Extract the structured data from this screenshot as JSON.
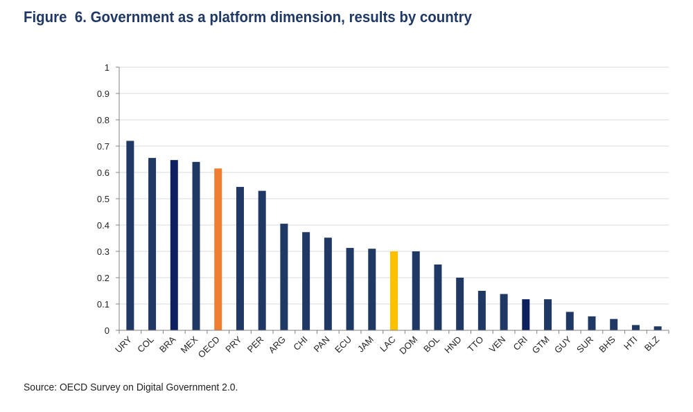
{
  "figure": {
    "title": "Figure  6. Government as a platform dimension, results by country",
    "source": "Source: OECD Survey on Digital Government 2.0."
  },
  "chart_data": {
    "type": "bar",
    "categories": [
      "URY",
      "COL",
      "BRA",
      "MEX",
      "OECD",
      "PRY",
      "PER",
      "ARG",
      "CHI",
      "PAN",
      "ECU",
      "JAM",
      "LAC",
      "DOM",
      "BOL",
      "HND",
      "TTO",
      "VEN",
      "CRI",
      "GTM",
      "GUY",
      "SUR",
      "BHS",
      "HTI",
      "BLZ"
    ],
    "values": [
      0.72,
      0.655,
      0.647,
      0.64,
      0.615,
      0.545,
      0.53,
      0.405,
      0.373,
      0.352,
      0.313,
      0.31,
      0.3,
      0.3,
      0.25,
      0.2,
      0.15,
      0.138,
      0.118,
      0.118,
      0.07,
      0.053,
      0.043,
      0.02,
      0.015
    ],
    "yticks": [
      "0",
      "0.1",
      "0.2",
      "0.3",
      "0.4",
      "0.5",
      "0.6",
      "0.7",
      "0.8",
      "0.9",
      "1"
    ],
    "ylim": [
      0,
      1
    ],
    "grid": true,
    "colors": {
      "default": "#1f3864",
      "dark": "#0f2060",
      "OECD": "#ed7d31",
      "LAC": "#ffc000",
      "grid": "#d9d9d9",
      "axis": "#7f7f7f"
    },
    "dark_categories": [
      "BRA",
      "CRI"
    ]
  }
}
